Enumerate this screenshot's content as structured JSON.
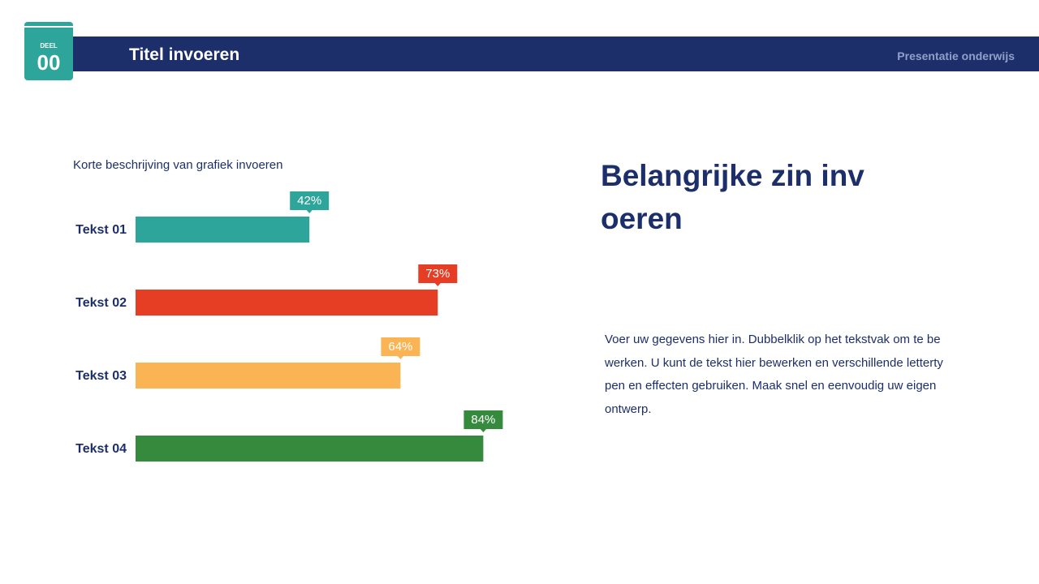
{
  "header": {
    "badge_label": "DEEL",
    "badge_number": "00",
    "title": "Titel invoeren",
    "subtitle": "Presentatie onderwijs"
  },
  "chart_data": {
    "type": "bar",
    "orientation": "horizontal",
    "description": "Korte beschrijving van grafiek invoeren",
    "categories": [
      "Tekst 01",
      "Tekst 02",
      "Tekst 03",
      "Tekst 04"
    ],
    "values": [
      42,
      73,
      64,
      84
    ],
    "value_labels": [
      "42%",
      "73%",
      "64%",
      "84%"
    ],
    "colors": [
      "#2ea59a",
      "#e53e24",
      "#fbb454",
      "#358a3e"
    ]
  },
  "heading": "Belangrijke zin invoeren",
  "body": "Voer uw gegevens hier in. Dubbelklik op het tekstvak om te bewerken. U kunt de tekst hier bewerken en verschillende lettertypen en effecten gebruiken. Maak snel en eenvoudig uw eigen ontwerp."
}
